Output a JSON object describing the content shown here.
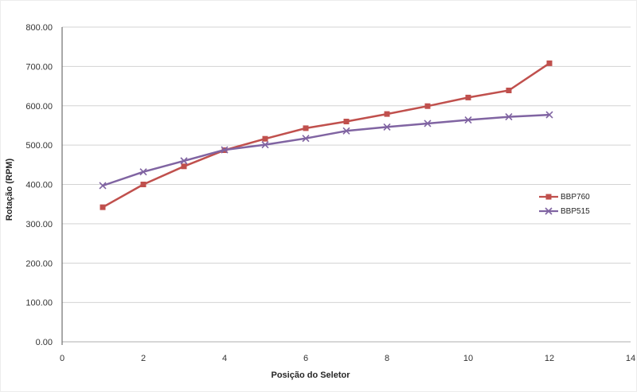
{
  "chart_data": {
    "type": "line",
    "title": "",
    "xlabel": "Posição do Seletor",
    "ylabel": "Rotação (RPM)",
    "xlim": [
      0,
      14
    ],
    "ylim": [
      0,
      800
    ],
    "x_ticks": [
      0,
      2,
      4,
      6,
      8,
      10,
      12,
      14
    ],
    "y_ticks": [
      0,
      100,
      200,
      300,
      400,
      500,
      600,
      700,
      800
    ],
    "y_tick_labels": [
      "0.00",
      "100.00",
      "200.00",
      "300.00",
      "400.00",
      "500.00",
      "600.00",
      "700.00",
      "800.00"
    ],
    "grid": true,
    "legend_position": "middle-right",
    "x": [
      1,
      2,
      3,
      4,
      5,
      6,
      7,
      8,
      9,
      10,
      11,
      12
    ],
    "series": [
      {
        "name": "BBP760",
        "color": "#C0504D",
        "marker": "square",
        "values": [
          342,
          400,
          446,
          487,
          516,
          543,
          560,
          579,
          599,
          621,
          639,
          708
        ]
      },
      {
        "name": "BBP515",
        "color": "#8064A2",
        "marker": "x",
        "values": [
          397,
          432,
          460,
          488,
          501,
          517,
          536,
          546,
          555,
          564,
          572,
          577
        ]
      }
    ],
    "colors": {
      "gridline": "#D3D3D3",
      "axis_line_left": "#6E6E6E",
      "axis_line_bottom": "#BFBFBF",
      "tick_text": "#333333"
    }
  }
}
